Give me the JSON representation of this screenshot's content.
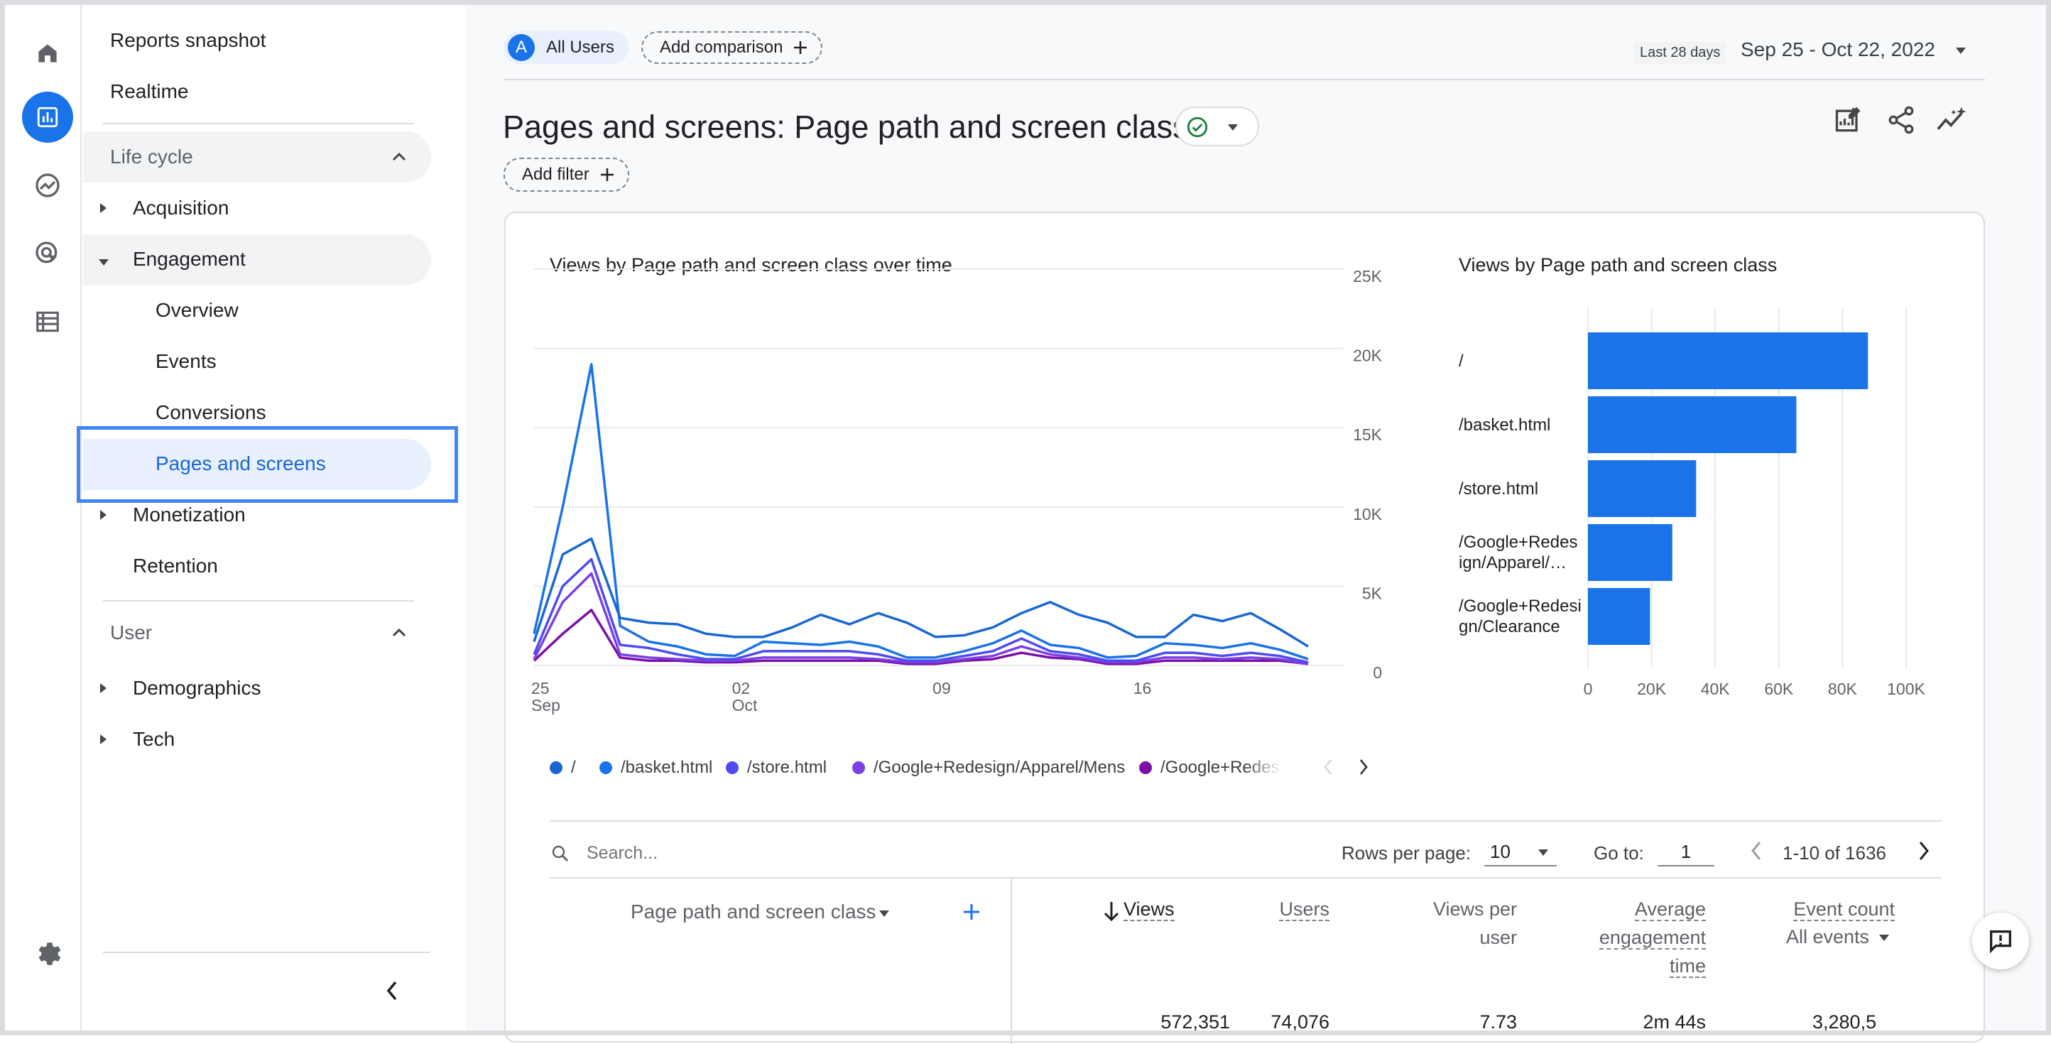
{
  "nav": {
    "top_items": [
      "Reports snapshot",
      "Realtime"
    ],
    "lifecycle": {
      "label": "Life cycle",
      "items": [
        {
          "label": "Acquisition"
        },
        {
          "label": "Engagement",
          "children": [
            "Overview",
            "Events",
            "Conversions",
            "Pages and screens"
          ]
        },
        {
          "label": "Monetization"
        },
        {
          "label": "Retention"
        }
      ]
    },
    "user": {
      "label": "User",
      "items": [
        "Demographics",
        "Tech"
      ]
    },
    "selected": "Pages and screens"
  },
  "rail": {
    "icons": [
      "home-icon",
      "reports-icon",
      "explore-icon",
      "advertising-icon",
      "configure-icon",
      "settings-icon"
    ]
  },
  "header": {
    "segment_letter": "A",
    "segment_label": "All Users",
    "add_comparison": "Add comparison",
    "date_hint": "Last 28 days",
    "date_range": "Sep 25 - Oct 22, 2022",
    "page_title": "Pages and screens: Page path and screen class",
    "add_filter": "Add filter"
  },
  "colors": {
    "accent": "#1a73e8",
    "status_ok": "#188038",
    "highlight_border": "#4285f4"
  },
  "chart_data": [
    {
      "type": "line",
      "title": "Views by Page path and screen class over time",
      "x_tick_labels": [
        "25\nSep",
        "02\nOct",
        "09",
        "16"
      ],
      "x": [
        "Sep 25",
        "Sep 26",
        "Sep 27",
        "Sep 28",
        "Sep 29",
        "Sep 30",
        "Oct 1",
        "Oct 2",
        "Oct 3",
        "Oct 4",
        "Oct 5",
        "Oct 6",
        "Oct 7",
        "Oct 8",
        "Oct 9",
        "Oct 10",
        "Oct 11",
        "Oct 12",
        "Oct 13",
        "Oct 14",
        "Oct 15",
        "Oct 16",
        "Oct 17",
        "Oct 18",
        "Oct 19",
        "Oct 20",
        "Oct 21",
        "Oct 22"
      ],
      "ylim": [
        0,
        25000
      ],
      "y_ticks": [
        "25K",
        "20K",
        "15K",
        "10K",
        "5K",
        "0"
      ],
      "series": [
        {
          "name": "/",
          "color": "#1967d2",
          "values": [
            1500,
            7000,
            8000,
            3000,
            2700,
            2600,
            2000,
            1800,
            1800,
            2400,
            3200,
            2600,
            3300,
            2700,
            1800,
            1900,
            2400,
            3300,
            4000,
            3200,
            2700,
            1800,
            1800,
            3200,
            2800,
            3300,
            2300,
            1200
          ]
        },
        {
          "name": "/basket.html",
          "color": "#1a73e8",
          "values": [
            2000,
            10000,
            19000,
            2500,
            1500,
            1200,
            700,
            600,
            1500,
            1400,
            1300,
            1500,
            1200,
            500,
            500,
            900,
            1400,
            2200,
            1300,
            1100,
            500,
            600,
            1400,
            1300,
            1100,
            1400,
            1000,
            400
          ]
        },
        {
          "name": "/store.html",
          "color": "#4e4cf0",
          "values": [
            700,
            5000,
            6700,
            1300,
            1100,
            700,
            400,
            400,
            900,
            900,
            900,
            900,
            700,
            300,
            300,
            600,
            900,
            1700,
            900,
            700,
            300,
            300,
            800,
            800,
            600,
            800,
            600,
            200
          ]
        },
        {
          "name": "/Google+Redesign/Apparel/Mens",
          "color": "#7b3fe4",
          "values": [
            400,
            4000,
            5800,
            700,
            500,
            400,
            300,
            300,
            500,
            500,
            500,
            500,
            400,
            200,
            200,
            400,
            600,
            1200,
            700,
            500,
            200,
            200,
            500,
            500,
            400,
            500,
            400,
            100
          ]
        },
        {
          "name": "/Google+Redesign/Clearance",
          "color": "#7b0fa8",
          "values": [
            300,
            2000,
            3500,
            500,
            300,
            300,
            200,
            200,
            300,
            300,
            300,
            300,
            300,
            100,
            100,
            300,
            400,
            800,
            500,
            400,
            100,
            100,
            300,
            300,
            300,
            300,
            300,
            100
          ]
        }
      ],
      "legend": [
        "/",
        "/basket.html",
        "/store.html",
        "/Google+Redesign/Apparel/Mens",
        "/Google+Redes"
      ]
    },
    {
      "type": "bar",
      "orientation": "horizontal",
      "title": "Views by Page path and screen class",
      "categories": [
        "/",
        "/basket.html",
        "/store.html",
        "/Google+Redesign/Apparel/…",
        "/Google+Redesign/Clearance"
      ],
      "category_labels": [
        [
          "/"
        ],
        [
          "/basket.html"
        ],
        [
          "/store.html"
        ],
        [
          "/Google+Redes",
          "ign/Apparel/…"
        ],
        [
          "/Google+Redesi",
          "gn/Clearance"
        ]
      ],
      "values": [
        88000,
        65500,
        34000,
        26500,
        19500
      ],
      "xlim": [
        0,
        100000
      ],
      "x_ticks": [
        "0",
        "20K",
        "40K",
        "60K",
        "80K",
        "100K"
      ],
      "color": "#1a73e8"
    }
  ],
  "table": {
    "search_placeholder": "Search...",
    "rows_per_page_label": "Rows per page:",
    "rows_per_page_value": "10",
    "goto_label": "Go to:",
    "goto_value": "1",
    "range_text": "1-10 of 1636",
    "dimension_header": "Page path and screen class",
    "columns": [
      {
        "lines": [
          "Views"
        ]
      },
      {
        "lines": [
          "Users"
        ]
      },
      {
        "lines": [
          "Views per",
          "user"
        ]
      },
      {
        "lines": [
          "Average",
          "engagement",
          "time"
        ]
      },
      {
        "lines": [
          "Event count"
        ],
        "sub": "All events"
      }
    ],
    "totals": [
      "572,351",
      "74,076",
      "7.73",
      "2m 44s",
      "3,280,5"
    ]
  }
}
